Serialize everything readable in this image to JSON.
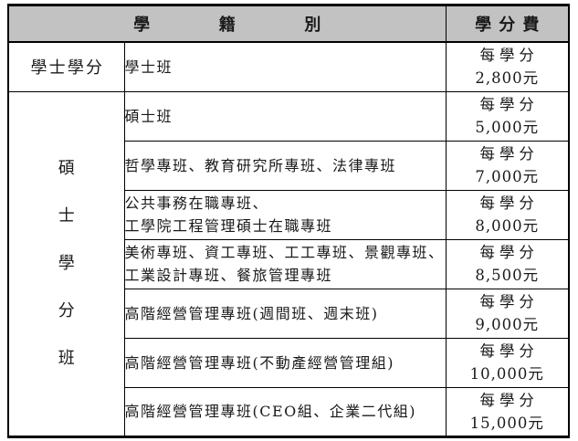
{
  "header": {
    "category_label": "學籍別",
    "fee_label": "學分費"
  },
  "bachelor_group_label": "學士學分",
  "master_group_chars": [
    "碩",
    "士",
    "學",
    "分",
    "班"
  ],
  "rows": [
    {
      "lines": [
        "學士班"
      ],
      "fee": [
        "每學分",
        "2,800元"
      ]
    },
    {
      "lines": [
        "碩士班"
      ],
      "fee": [
        "每學分",
        "5,000元"
      ]
    },
    {
      "lines": [
        "哲學專班、教育研究所專班、法律專班"
      ],
      "fee": [
        "每學分",
        "7,000元"
      ]
    },
    {
      "lines": [
        "公共事務在職專班、",
        "工學院工程管理碩士在職專班"
      ],
      "fee": [
        "每學分",
        "8,000元"
      ]
    },
    {
      "lines": [
        "美術專班、資工專班、工工專班、景觀專班、",
        "工業設計專班、餐旅管理專班"
      ],
      "fee": [
        "每學分",
        "8,500元"
      ]
    },
    {
      "lines": [
        "高階經營管理專班(週間班、週末班)"
      ],
      "fee": [
        "每學分",
        "9,000元"
      ]
    },
    {
      "lines": [
        "高階經營管理專班(不動產經營管理組)"
      ],
      "fee": [
        "每學分",
        "10,000元"
      ]
    },
    {
      "lines": [
        "高階經營管理專班(CEO組、企業二代組)"
      ],
      "fee": [
        "每學分",
        "15,000元"
      ]
    }
  ],
  "colors": {
    "header_bg": "#c2c2c2",
    "border": "#000000",
    "text": "#1a1a1a"
  }
}
